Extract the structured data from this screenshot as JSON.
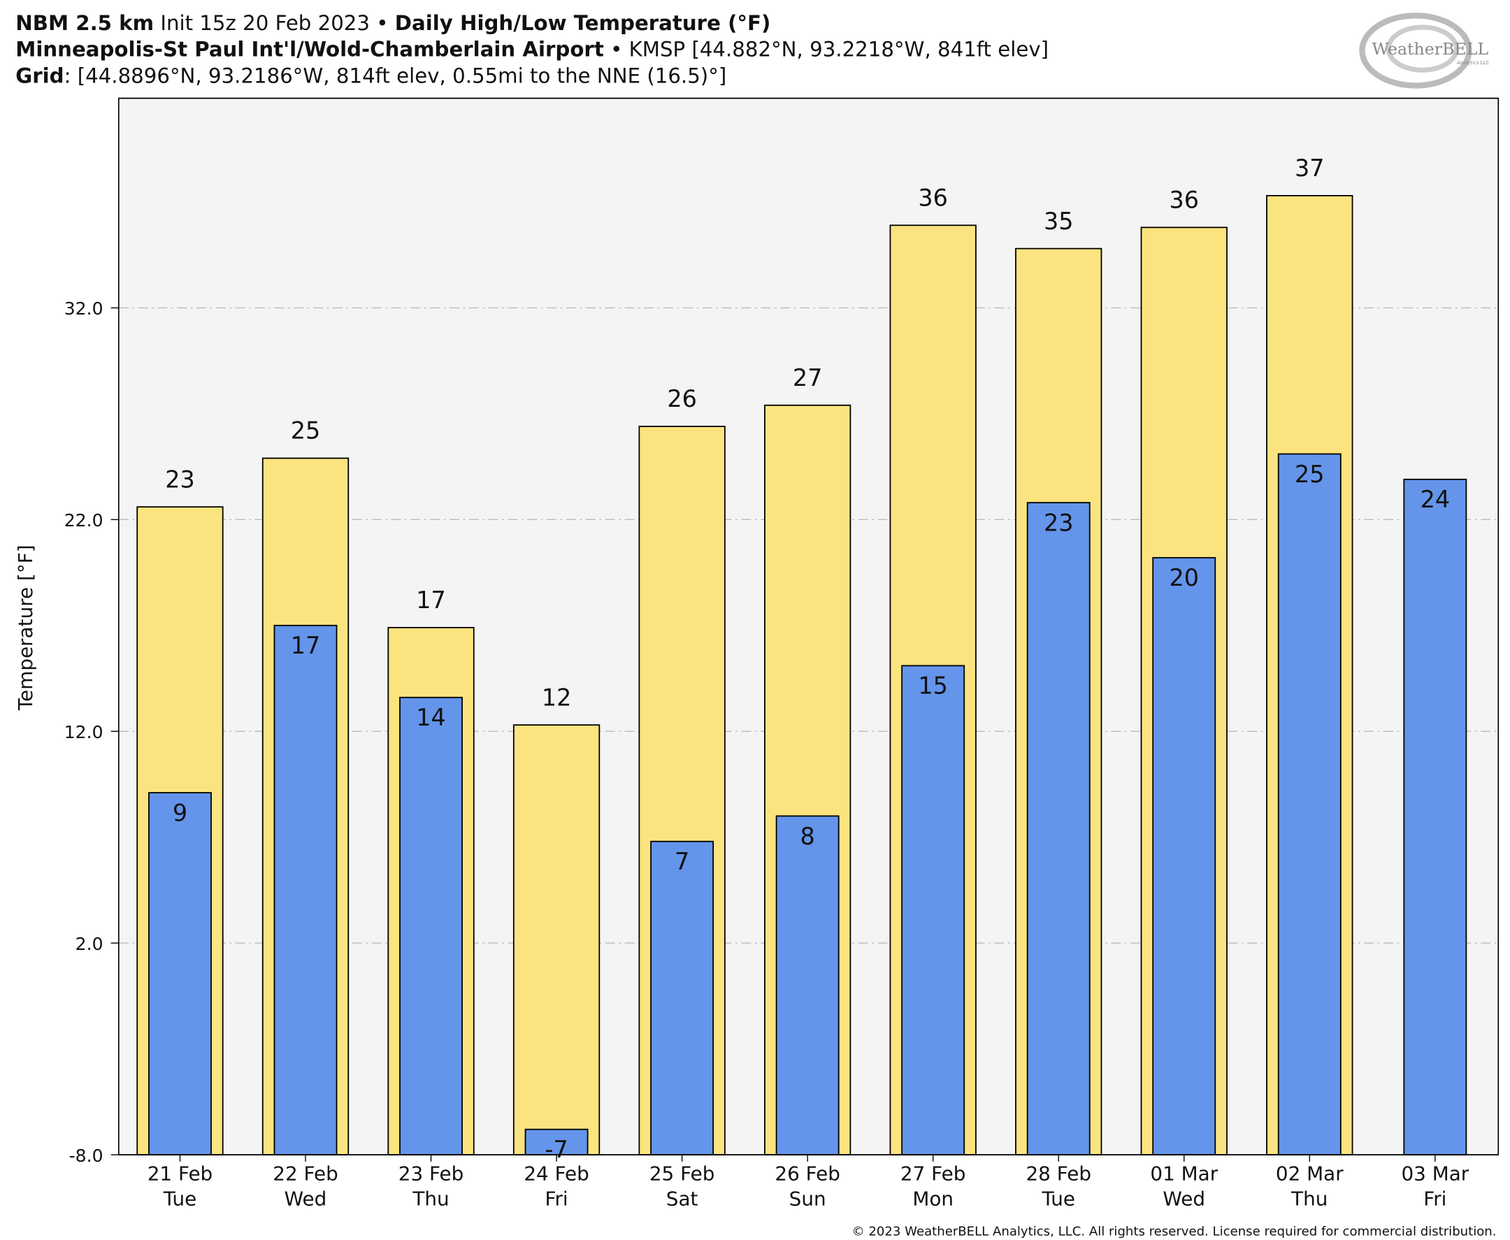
{
  "chart_data": {
    "type": "bar",
    "title_parts": [
      "NBM 2.5 km",
      " Init 15z 20 Feb 2023 • ",
      "Daily High/Low Temperature (°F)"
    ],
    "subtitle_parts": [
      "Minneapolis-St Paul Int'l/Wold-Chamberlain Airport",
      " • KMSP [44.882°N, 93.2218°W, 841ft elev]"
    ],
    "grid_line_parts": [
      "Grid",
      ": [44.8896°N, 93.2186°W, 814ft elev, 0.55mi to the NNE (16.5)°]"
    ],
    "logo_text": "WeatherBELL",
    "logo_subtext": "Analytics LLC",
    "ylabel": "Temperature [°F]",
    "footer": "© 2023 WeatherBELL Analytics, LLC. All rights reserved. License required for commercial distribution.",
    "categories": [
      "21 Feb",
      "22 Feb",
      "23 Feb",
      "24 Feb",
      "25 Feb",
      "26 Feb",
      "27 Feb",
      "28 Feb",
      "01 Mar",
      "02 Mar",
      "03 Mar"
    ],
    "weekdays": [
      "Tue",
      "Wed",
      "Thu",
      "Fri",
      "Sat",
      "Sun",
      "Mon",
      "Tue",
      "Wed",
      "Thu",
      "Fri"
    ],
    "series": [
      {
        "name": "High",
        "color": "#fbe480",
        "values": [
          22.6,
          24.9,
          16.9,
          12.3,
          26.4,
          27.4,
          35.9,
          34.8,
          35.8,
          37.3,
          null
        ],
        "value_labels": [
          "23",
          "25",
          "17",
          "12",
          "26",
          "27",
          "36",
          "35",
          "36",
          "37",
          null
        ]
      },
      {
        "name": "Low",
        "color": "#6495ea",
        "values": [
          9.1,
          17.0,
          13.6,
          -6.8,
          6.8,
          8.0,
          15.1,
          22.8,
          20.2,
          25.1,
          23.9
        ],
        "value_labels": [
          "9",
          "17",
          "14",
          "-7",
          "7",
          "8",
          "15",
          "23",
          "20",
          "25",
          "24"
        ]
      }
    ],
    "ylim": [
      -8,
      41.9
    ],
    "yticks": [
      {
        "value": -8,
        "label": "-8.0"
      },
      {
        "value": 2,
        "label": "2.0"
      },
      {
        "value": 12,
        "label": "12.0"
      },
      {
        "value": 22,
        "label": "22.0"
      },
      {
        "value": 32,
        "label": "32.0"
      }
    ],
    "grid": true
  }
}
